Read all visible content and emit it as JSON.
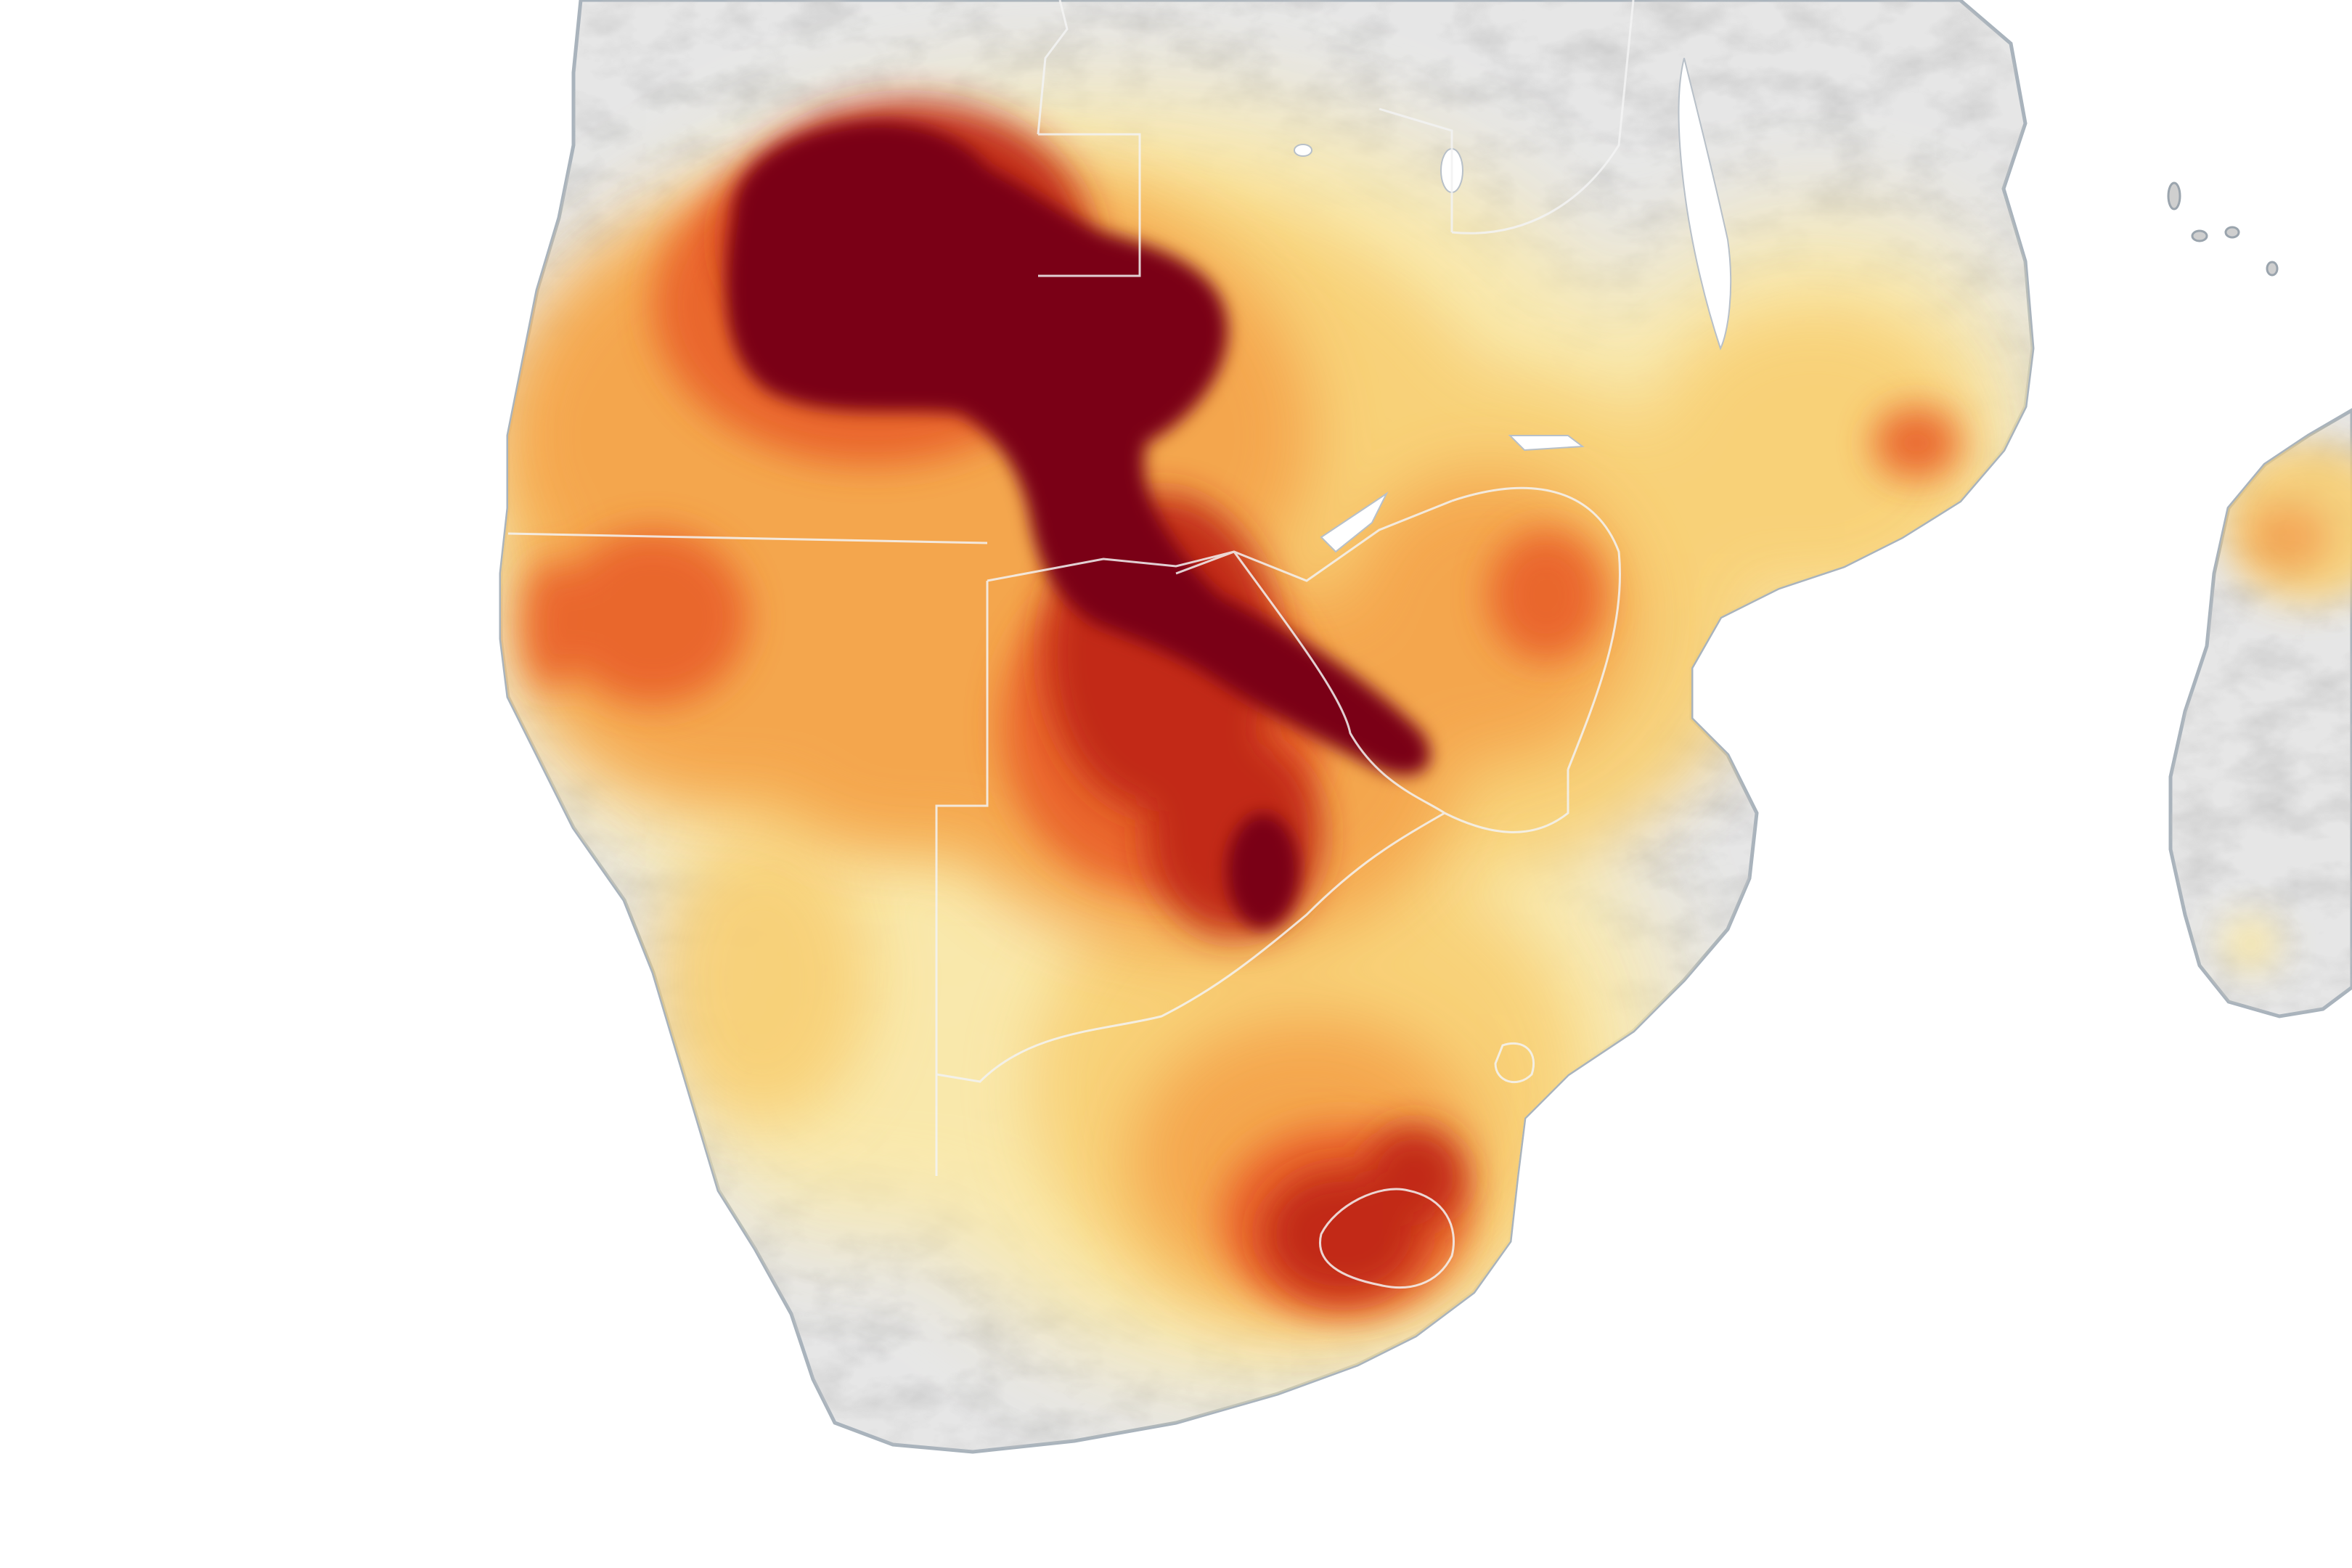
{
  "map": {
    "colors": {
      "ocean": "#ffffff",
      "land": "#e6e6e6",
      "land_shadow": "#c9c9c9",
      "coast": "#a7b0b8",
      "border": "#f4f4f4",
      "lake": "#ffffff",
      "scale_light": "#fbe9a9",
      "scale_yellow": "#f8cf73",
      "scale_orange": "#f4a24a",
      "scale_deep_orange": "#e9622a",
      "scale_red": "#c02817",
      "scale_darkest": "#7a0019"
    }
  }
}
